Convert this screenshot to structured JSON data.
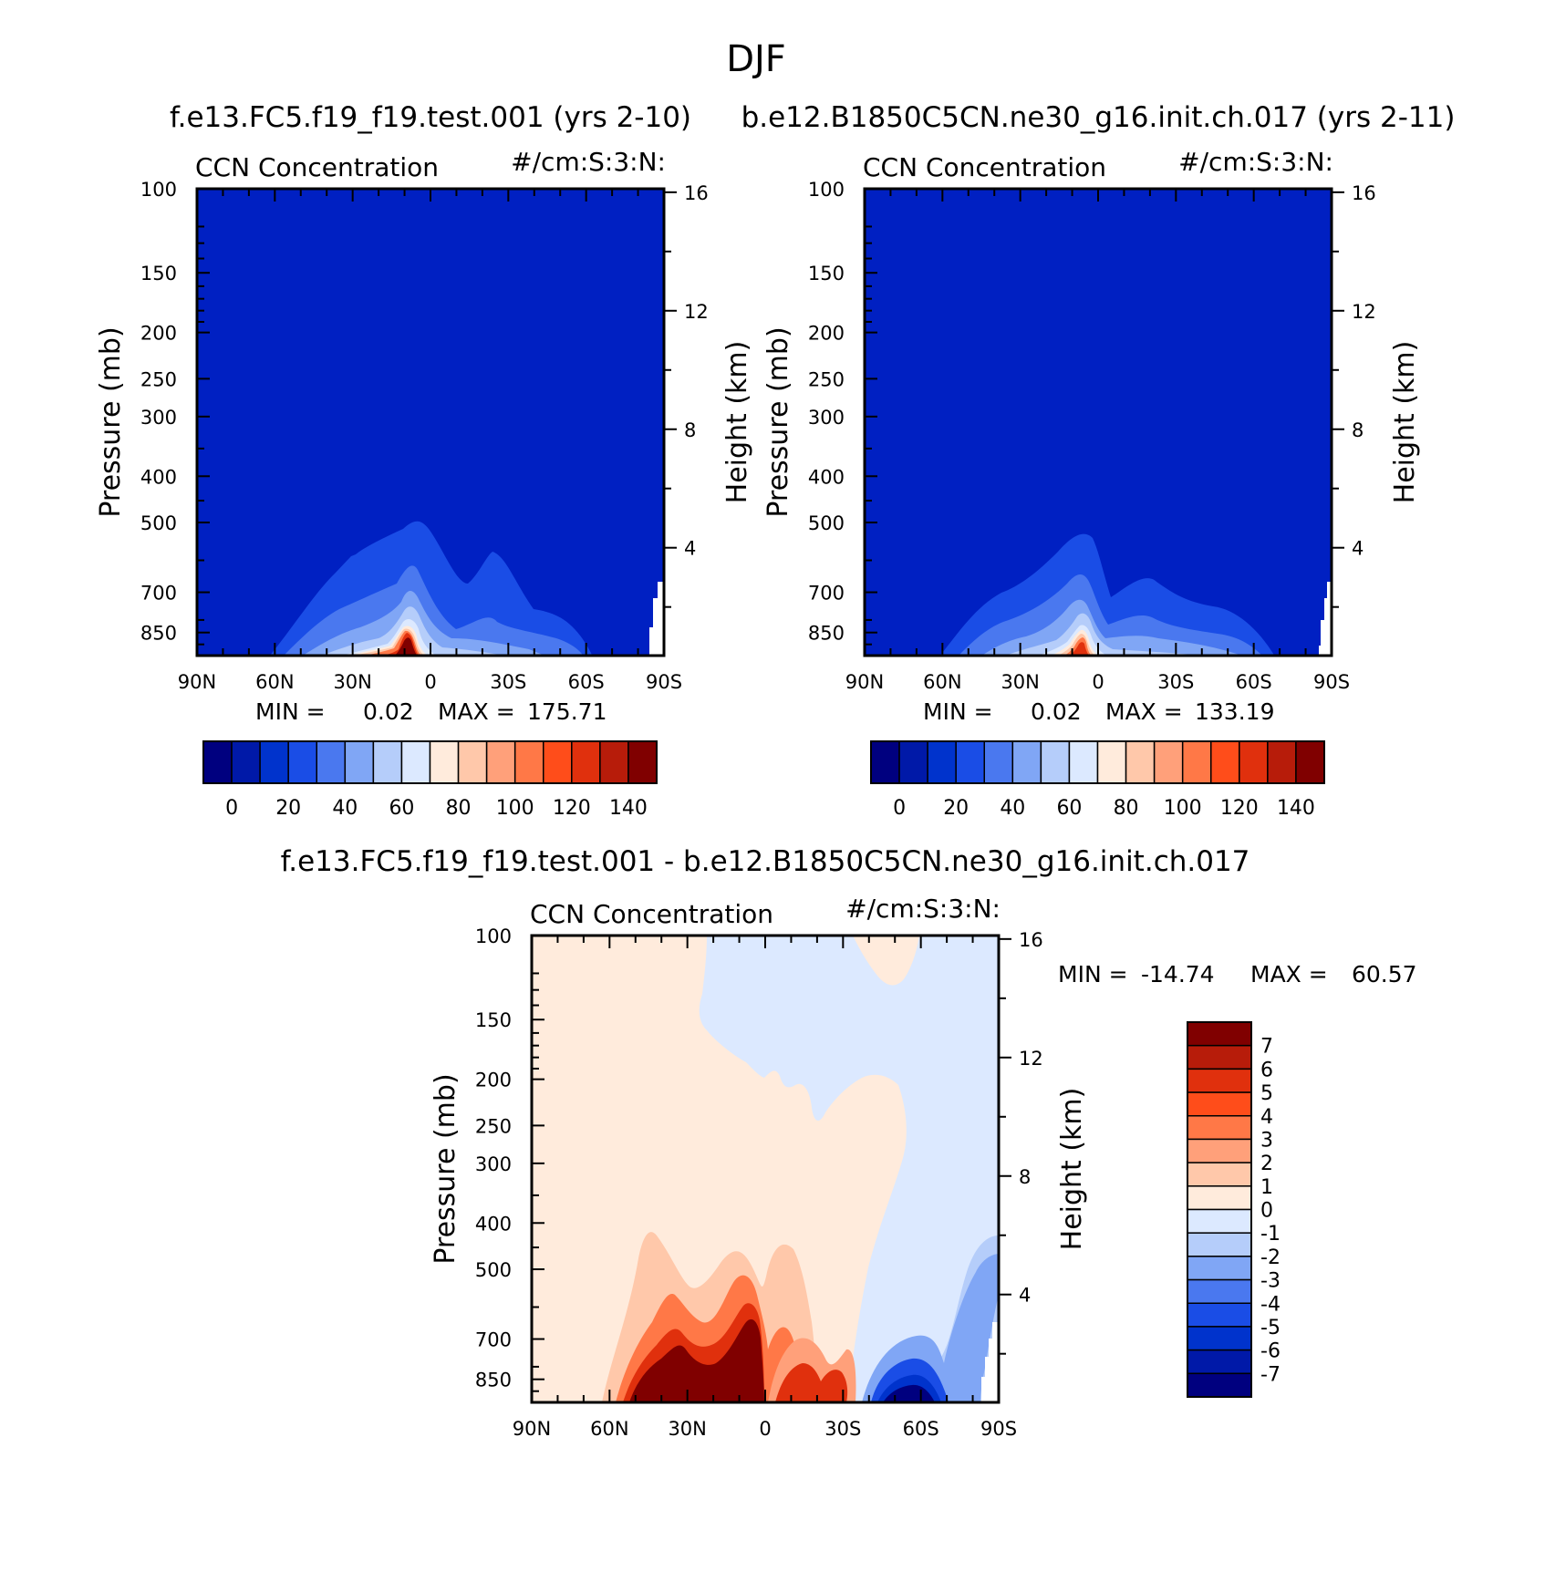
{
  "page": {
    "title": "DJF"
  },
  "colors": {
    "fill_palette": [
      "#00007f",
      "#0019a8",
      "#0033cc",
      "#1a4de6",
      "#4a78ef",
      "#80a6f5",
      "#b5cdfa",
      "#dce9ff",
      "#ffebdc",
      "#ffc8aa",
      "#ffa07a",
      "#ff7847",
      "#ff4d1a",
      "#e0300d",
      "#b71c0a",
      "#800000"
    ],
    "background_field": "#0020c2",
    "line": "#000000"
  },
  "shared_axes": {
    "left_label": "Pressure (mb)",
    "right_label": "Height (km)",
    "pressure_ticks": [
      "100",
      "150",
      "200",
      "250",
      "300",
      "400",
      "500",
      "700",
      "850"
    ],
    "height_ticks": [
      "16",
      "12",
      "8",
      "4"
    ],
    "lat_ticks": [
      "90N",
      "60N",
      "30N",
      "0",
      "30S",
      "60S",
      "90S"
    ]
  },
  "chart_data": [
    {
      "type": "heatmap",
      "name": "panel-1",
      "case_title": "f.e13.FC5.f19_f19.test.001 (yrs 2-10)",
      "variable": "CCN Concentration",
      "units": "#/cm:S:3:N:",
      "x_range": [
        90,
        -90
      ],
      "y_range_mb": [
        100,
        950
      ],
      "stats": {
        "min_label": "MIN =",
        "min": "0.02",
        "max_label": "MAX =",
        "max": "175.71"
      },
      "colorbar": {
        "labels": [
          "0",
          "20",
          "40",
          "60",
          "80",
          "100",
          "120",
          "140"
        ]
      },
      "features": [
        {
          "lat": 6,
          "peak_mb": 500,
          "level": 15
        },
        {
          "lat": -24,
          "peak_mb": 560,
          "level": 5
        },
        {
          "lat": 20,
          "peak_mb": 580,
          "level": 4
        },
        {
          "lat": -55,
          "peak_mb": 710,
          "level": 3
        }
      ]
    },
    {
      "type": "heatmap",
      "name": "panel-2",
      "case_title": "b.e12.B1850C5CN.ne30_g16.init.ch.017 (yrs 2-11)",
      "variable": "CCN Concentration",
      "units": "#/cm:S:3:N:",
      "x_range": [
        90,
        -90
      ],
      "y_range_mb": [
        100,
        950
      ],
      "stats": {
        "min_label": "MIN =",
        "min": "0.02",
        "max_label": "MAX =",
        "max": "133.19"
      },
      "colorbar": {
        "labels": [
          "0",
          "20",
          "40",
          "60",
          "80",
          "100",
          "120",
          "140"
        ]
      },
      "features": [
        {
          "lat": 5,
          "peak_mb": 510,
          "level": 13
        },
        {
          "lat": -22,
          "peak_mb": 640,
          "level": 4
        },
        {
          "lat": 28,
          "peak_mb": 640,
          "level": 3
        },
        {
          "lat": -52,
          "peak_mb": 730,
          "level": 3
        }
      ]
    },
    {
      "type": "heatmap",
      "name": "panel-diff",
      "case_title": "f.e13.FC5.f19_f19.test.001 - b.e12.B1850C5CN.ne30_g16.init.ch.017",
      "variable": "CCN Concentration",
      "units": "#/cm:S:3:N:",
      "x_range": [
        90,
        -90
      ],
      "y_range_mb": [
        100,
        950
      ],
      "stats": {
        "min_label": "MIN =",
        "min": "-14.74",
        "max_label": "MAX =",
        "max": "60.57"
      },
      "colorbar": {
        "labels": [
          "7",
          "6",
          "5",
          "4",
          "3",
          "2",
          "1",
          "0",
          "-1",
          "-2",
          "-3",
          "-4",
          "-5",
          "-6",
          "-7"
        ]
      },
      "features": [
        {
          "lat": 30,
          "peak_mb": 430,
          "level": 15,
          "sign": "positive"
        },
        {
          "lat": 5,
          "peak_mb": 480,
          "level": 15,
          "sign": "positive"
        },
        {
          "lat": -25,
          "peak_mb": 470,
          "level": 12,
          "sign": "positive"
        },
        {
          "lat": -52,
          "peak_mb": 700,
          "level": 0,
          "sign": "negative"
        }
      ]
    }
  ]
}
